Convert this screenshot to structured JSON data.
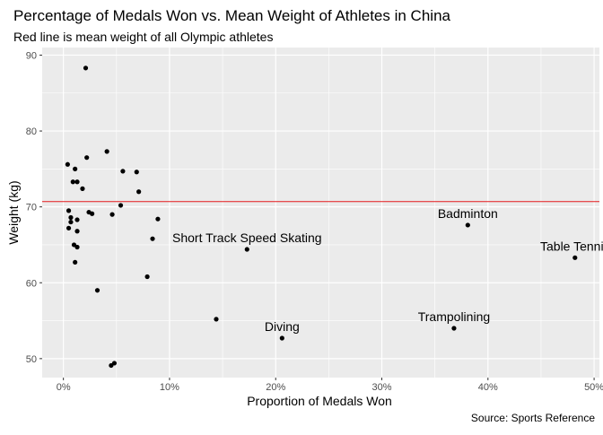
{
  "chart_data": {
    "type": "scatter",
    "title": "Percentage of Medals Won vs. Mean Weight of Athletes in China",
    "subtitle": "Red line is mean weight of all Olympic athletes",
    "xlabel": "Proportion of Medals Won",
    "ylabel": "Weight (kg)",
    "caption": "Source: Sports Reference",
    "xlim": [
      -0.02,
      0.505
    ],
    "ylim": [
      47.5,
      91
    ],
    "x_ticks": [
      0,
      0.1,
      0.2,
      0.3,
      0.4,
      0.5
    ],
    "x_tick_labels": [
      "0%",
      "10%",
      "20%",
      "30%",
      "40%",
      "50%"
    ],
    "y_ticks": [
      50,
      60,
      70,
      80,
      90
    ],
    "y_tick_labels": [
      "50",
      "60",
      "70",
      "80",
      "90"
    ],
    "reference_line": {
      "y": 70.7,
      "color": "#e41a1c"
    },
    "colors": {
      "panel": "#ebebeb",
      "grid": "#ffffff",
      "point": "#000000",
      "text": "#000000",
      "axis_text": "#4d4d4d"
    },
    "grid": true,
    "points": [
      {
        "x": 0.021,
        "y": 88.3
      },
      {
        "x": 0.041,
        "y": 77.3
      },
      {
        "x": 0.022,
        "y": 76.5
      },
      {
        "x": 0.004,
        "y": 75.6
      },
      {
        "x": 0.011,
        "y": 75.0
      },
      {
        "x": 0.056,
        "y": 74.7
      },
      {
        "x": 0.069,
        "y": 74.6
      },
      {
        "x": 0.009,
        "y": 73.3
      },
      {
        "x": 0.013,
        "y": 73.3
      },
      {
        "x": 0.018,
        "y": 72.4
      },
      {
        "x": 0.071,
        "y": 72.0
      },
      {
        "x": 0.054,
        "y": 70.2
      },
      {
        "x": 0.005,
        "y": 69.5
      },
      {
        "x": 0.024,
        "y": 69.3
      },
      {
        "x": 0.027,
        "y": 69.1
      },
      {
        "x": 0.046,
        "y": 69.0
      },
      {
        "x": 0.007,
        "y": 68.6
      },
      {
        "x": 0.089,
        "y": 68.4
      },
      {
        "x": 0.013,
        "y": 68.3
      },
      {
        "x": 0.007,
        "y": 68.0
      },
      {
        "x": 0.005,
        "y": 67.2
      },
      {
        "x": 0.013,
        "y": 66.8
      },
      {
        "x": 0.084,
        "y": 65.8
      },
      {
        "x": 0.01,
        "y": 65.0
      },
      {
        "x": 0.013,
        "y": 64.7
      },
      {
        "x": 0.011,
        "y": 62.7
      },
      {
        "x": 0.079,
        "y": 60.8
      },
      {
        "x": 0.032,
        "y": 59.0
      },
      {
        "x": 0.144,
        "y": 55.2
      },
      {
        "x": 0.048,
        "y": 49.4
      },
      {
        "x": 0.045,
        "y": 49.1
      },
      {
        "x": 0.173,
        "y": 64.4,
        "label": "Short Track Speed Skating"
      },
      {
        "x": 0.206,
        "y": 52.7,
        "label": "Diving"
      },
      {
        "x": 0.368,
        "y": 54.0,
        "label": "Trampolining"
      },
      {
        "x": 0.381,
        "y": 67.6,
        "label": "Badminton"
      },
      {
        "x": 0.482,
        "y": 63.3,
        "label": "Table Tennis"
      }
    ]
  }
}
